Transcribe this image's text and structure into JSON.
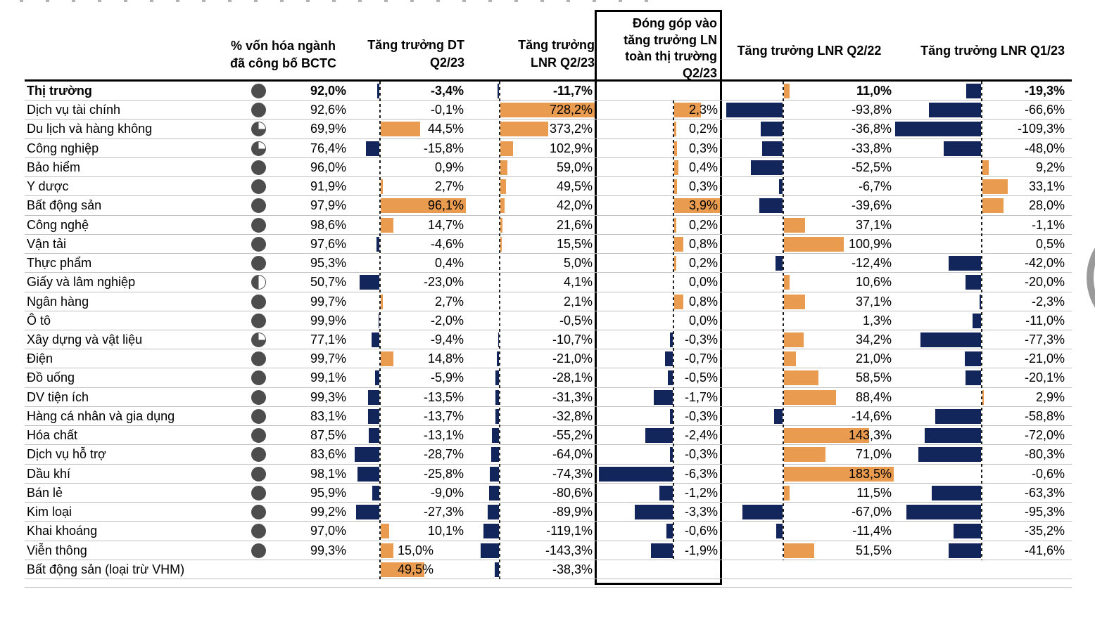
{
  "colors": {
    "positive_bar": "#E99C4F",
    "negative_bar": "#13265C",
    "pie_fill": "#4D4D4D",
    "grid_line": "#C0C0C0",
    "box_border": "#000000"
  },
  "chart_data": {
    "type": "table",
    "unit": "%",
    "decimal_separator": ",",
    "legend": "orange bars = positive values, dark navy bars = negative values; pie icon shows share of sector market cap having reported financials",
    "columns": [
      {
        "key": "cap",
        "header": "% vốn hóa ngành\nđã công bố BCTC"
      },
      {
        "key": "dt",
        "header": "Tăng trưởng DT\nQ2/23"
      },
      {
        "key": "lnr_q2_23",
        "header": "Tăng trưởng\nLNR Q2/23"
      },
      {
        "key": "contrib",
        "header": "Đóng góp vào\ntăng trưởng LN\ntoàn thị trường\nQ2/23",
        "boxed": true
      },
      {
        "key": "lnr_q2_22",
        "header": "Tăng trưởng LNR Q2/22"
      },
      {
        "key": "lnr_q1_23",
        "header": "Tăng trưởng LNR Q1/23"
      }
    ],
    "rows": [
      {
        "name": "Thị trường",
        "bold": true,
        "cap": 92.0,
        "dt": -3.4,
        "lnr_q2_23": -11.7,
        "contrib": null,
        "lnr_q2_22": 11.0,
        "lnr_q1_23": -19.3
      },
      {
        "name": "Dịch vụ tài chính",
        "cap": 92.6,
        "dt": -0.1,
        "lnr_q2_23": 728.2,
        "contrib": 2.3,
        "lnr_q2_22": -93.8,
        "lnr_q1_23": -66.6
      },
      {
        "name": "Du lịch và hàng không",
        "cap": 69.9,
        "dt": 44.5,
        "lnr_q2_23": 373.2,
        "contrib": 0.2,
        "lnr_q2_22": -36.8,
        "lnr_q1_23": -109.3
      },
      {
        "name": "Công nghiệp",
        "cap": 76.4,
        "dt": -15.8,
        "lnr_q2_23": 102.9,
        "contrib": 0.3,
        "lnr_q2_22": -33.8,
        "lnr_q1_23": -48.0
      },
      {
        "name": "Bảo hiểm",
        "cap": 96.0,
        "dt": 0.9,
        "lnr_q2_23": 59.0,
        "contrib": 0.4,
        "lnr_q2_22": -52.5,
        "lnr_q1_23": 9.2
      },
      {
        "name": "Y dược",
        "cap": 91.9,
        "dt": 2.7,
        "lnr_q2_23": 49.5,
        "contrib": 0.3,
        "lnr_q2_22": -6.7,
        "lnr_q1_23": 33.1
      },
      {
        "name": "Bất động sản",
        "cap": 97.9,
        "dt": 96.1,
        "lnr_q2_23": 42.0,
        "contrib": 3.9,
        "lnr_q2_22": -39.6,
        "lnr_q1_23": 28.0
      },
      {
        "name": "Công nghệ",
        "cap": 98.6,
        "dt": 14.7,
        "lnr_q2_23": 21.6,
        "contrib": 0.2,
        "lnr_q2_22": 37.1,
        "lnr_q1_23": -1.1
      },
      {
        "name": "Vận tải",
        "cap": 97.6,
        "dt": -4.6,
        "lnr_q2_23": 15.5,
        "contrib": 0.8,
        "lnr_q2_22": 100.9,
        "lnr_q1_23": 0.5
      },
      {
        "name": "Thực phẩm",
        "cap": 95.3,
        "dt": 0.4,
        "lnr_q2_23": 5.0,
        "contrib": 0.2,
        "lnr_q2_22": -12.4,
        "lnr_q1_23": -42.0
      },
      {
        "name": "Giấy và lâm nghiệp",
        "cap": 50.7,
        "dt": -23.0,
        "lnr_q2_23": 4.1,
        "contrib": 0.0,
        "lnr_q2_22": 10.6,
        "lnr_q1_23": -20.0
      },
      {
        "name": "Ngân hàng",
        "cap": 99.7,
        "dt": 2.7,
        "lnr_q2_23": 2.1,
        "contrib": 0.8,
        "lnr_q2_22": 37.1,
        "lnr_q1_23": -2.3
      },
      {
        "name": "Ô tô",
        "cap": 99.9,
        "dt": -2.0,
        "lnr_q2_23": -0.5,
        "contrib": 0.0,
        "lnr_q2_22": 1.3,
        "lnr_q1_23": -11.0
      },
      {
        "name": "Xây dựng và vật liệu",
        "cap": 77.1,
        "dt": -9.4,
        "lnr_q2_23": -10.7,
        "contrib": -0.3,
        "lnr_q2_22": 34.2,
        "lnr_q1_23": -77.3
      },
      {
        "name": "Điện",
        "cap": 99.7,
        "dt": 14.8,
        "lnr_q2_23": -21.0,
        "contrib": -0.7,
        "lnr_q2_22": 21.0,
        "lnr_q1_23": -21.0
      },
      {
        "name": "Đồ uống",
        "cap": 99.1,
        "dt": -5.9,
        "lnr_q2_23": -28.1,
        "contrib": -0.5,
        "lnr_q2_22": 58.5,
        "lnr_q1_23": -20.1
      },
      {
        "name": "DV tiện ích",
        "cap": 99.3,
        "dt": -13.5,
        "lnr_q2_23": -31.3,
        "contrib": -1.7,
        "lnr_q2_22": 88.4,
        "lnr_q1_23": 2.9
      },
      {
        "name": "Hàng cá nhân và gia dụng",
        "cap": 83.1,
        "dt": -13.7,
        "lnr_q2_23": -32.8,
        "contrib": -0.3,
        "lnr_q2_22": -14.6,
        "lnr_q1_23": -58.8
      },
      {
        "name": "Hóa chất",
        "cap": 87.5,
        "dt": -13.1,
        "lnr_q2_23": -55.2,
        "contrib": -2.4,
        "lnr_q2_22": 143.3,
        "lnr_q1_23": -72.0
      },
      {
        "name": "Dịch vụ hỗ trợ",
        "cap": 83.6,
        "dt": -28.7,
        "lnr_q2_23": -64.0,
        "contrib": -0.3,
        "lnr_q2_22": 71.0,
        "lnr_q1_23": -80.3
      },
      {
        "name": "Dầu khí",
        "cap": 98.1,
        "dt": -25.8,
        "lnr_q2_23": -74.3,
        "contrib": -6.3,
        "lnr_q2_22": 183.5,
        "lnr_q1_23": -0.6
      },
      {
        "name": "Bán lẻ",
        "cap": 95.9,
        "dt": -9.0,
        "lnr_q2_23": -80.6,
        "contrib": -1.2,
        "lnr_q2_22": 11.5,
        "lnr_q1_23": -63.3
      },
      {
        "name": "Kim loại",
        "cap": 99.2,
        "dt": -27.3,
        "lnr_q2_23": -89.9,
        "contrib": -3.3,
        "lnr_q2_22": -67.0,
        "lnr_q1_23": -95.3
      },
      {
        "name": "Khai khoáng",
        "cap": 97.0,
        "dt": 10.1,
        "lnr_q2_23": -119.1,
        "contrib": -0.6,
        "lnr_q2_22": -11.4,
        "lnr_q1_23": -35.2
      },
      {
        "name": "Viễn thông",
        "cap": 99.3,
        "dt": 15.0,
        "dt_label_left": true,
        "lnr_q2_23": -143.3,
        "contrib": -1.9,
        "lnr_q2_22": 51.5,
        "lnr_q1_23": -41.6
      },
      {
        "name": "Bất động sản (loại trừ VHM)",
        "cap": null,
        "dt": 49.5,
        "dt_label_left": true,
        "lnr_q2_23": -38.3,
        "contrib": null,
        "lnr_q2_22": null,
        "lnr_q1_23": null
      }
    ]
  }
}
